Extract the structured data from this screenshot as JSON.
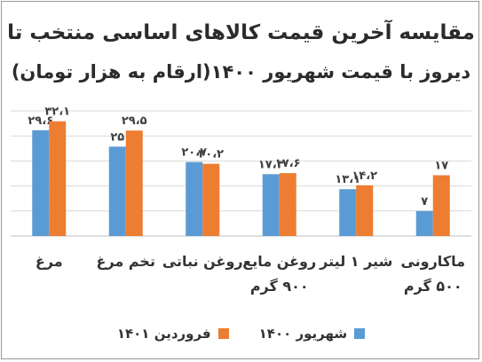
{
  "chart_data": {
    "type": "bar",
    "title": "مقایسه آخرین قیمت کالاهای اساسی منتخب تا",
    "subtitle": "دیروز با قیمت شهریور ۱۴۰۰(ارقام به هزار تومان)",
    "categories": [
      [
        "مرغ"
      ],
      [
        "تخم مرغ"
      ],
      [
        "روغن نباتی"
      ],
      [
        "روغن مایع",
        "۹۰۰ گرم"
      ],
      [
        "شیر ۱ لیتر"
      ],
      [
        "ماکارونی",
        "۵۰۰ گرم"
      ]
    ],
    "series": [
      {
        "name": "شهریور ۱۴۰۰",
        "color": "#5b9bd5",
        "values": [
          29.6,
          25,
          20.7,
          17.3,
          13.1,
          7
        ],
        "labels": [
          "۲۹،۶",
          "۲۵",
          "۲۰،۷",
          "۱۷،۳",
          "۱۳،۱",
          "۷"
        ]
      },
      {
        "name": "فروردین ۱۴۰۱",
        "color": "#ed7d31",
        "values": [
          32.1,
          29.5,
          20.2,
          17.6,
          14.2,
          17
        ],
        "labels": [
          "۳۲،۱",
          "۲۹،۵",
          "۲۰،۲",
          "۱۷،۶",
          "۱۴،۲",
          "۱۷"
        ]
      }
    ],
    "ylim": [
      0,
      35
    ],
    "grid": true,
    "legend": "bottom",
    "xlabel": "",
    "ylabel": ""
  }
}
